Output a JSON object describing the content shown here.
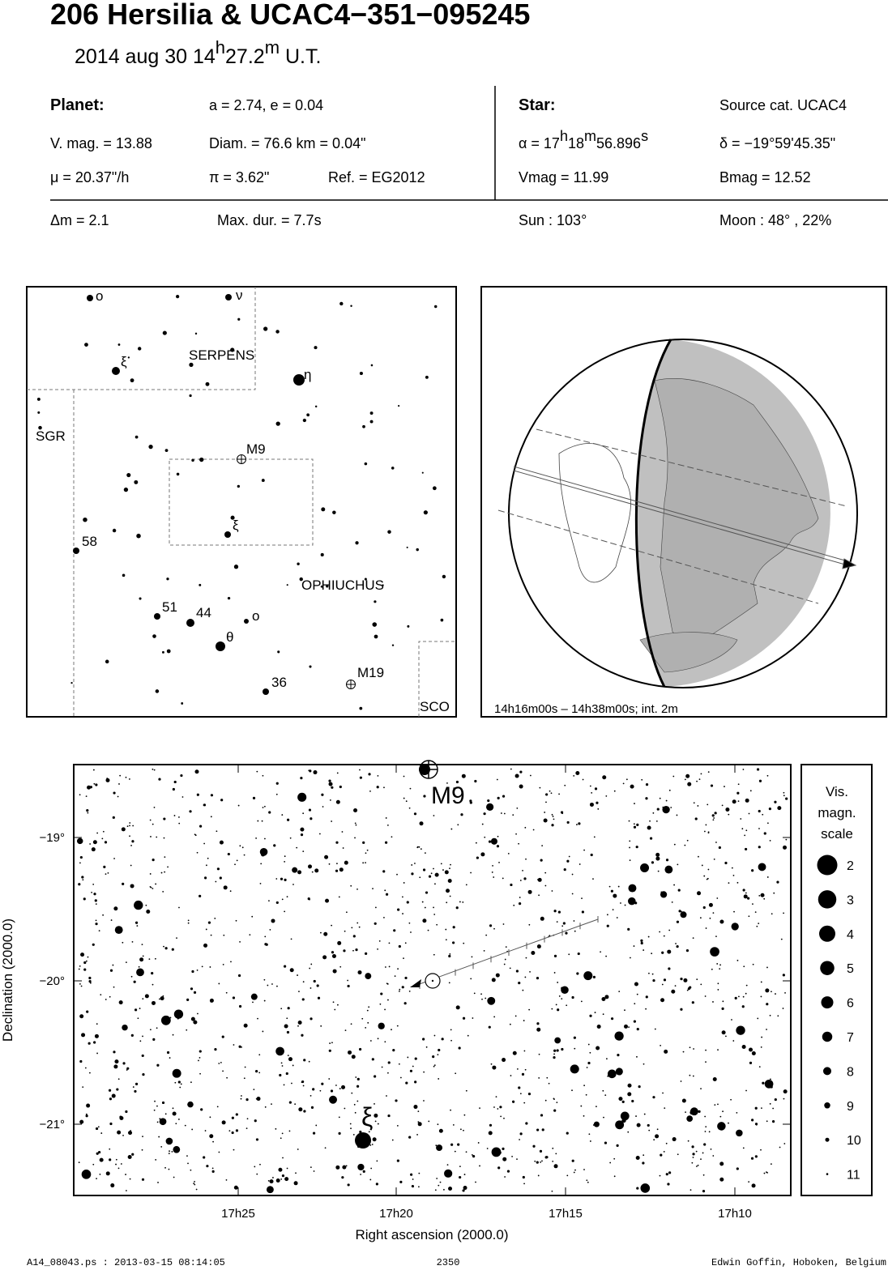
{
  "header": {
    "title": "206 Hersilia  &  UCAC4−351−095245",
    "subtitle": [
      "2014 aug 30  14",
      "h",
      "27.2",
      "m",
      " U.T."
    ]
  },
  "info": {
    "planet_label": "Planet:",
    "orbit": "a = 2.74, e = 0.04",
    "vmag": "V. mag. = 13.88",
    "diam": "Diam. = 76.6 km = 0.04\"",
    "mu": "μ =  20.37\"/h",
    "parallax": "π =  3.62\"",
    "ref": "Ref. = EG2012",
    "star_label": "Star:",
    "source": "Source cat.  UCAC4",
    "alpha": [
      "α = 17",
      "h",
      "18",
      "m",
      "56.896",
      "s"
    ],
    "delta": "δ = −19°59'45.35\"",
    "vmag_star": "Vmag = 11.99",
    "bmag": "Bmag = 12.52",
    "dm": "Δm = 2.1",
    "max_dur": "Max. dur. = 7.7s",
    "sun": "Sun : 103°",
    "moon": "Moon :  48° , 22%"
  },
  "finder": {
    "labels": [
      "o",
      "ν",
      "ξ",
      "SERPENS",
      "η",
      "SGR",
      "M9",
      "ξ",
      "58",
      "OPHIUCHUS",
      "51",
      "44",
      "o",
      "θ",
      "M19",
      "36",
      "SCO"
    ]
  },
  "globe": {
    "caption": "14h16m00s – 14h38m00s; int.  2m"
  },
  "main_chart": {
    "yticks": [
      "−19°",
      "−20°",
      "−21°"
    ],
    "xticks": [
      "17h25",
      "17h20",
      "17h15",
      "17h10"
    ],
    "xlabel": "Right ascension (2000.0)",
    "ylabel": "Declination (2000.0)",
    "labels": [
      "M9",
      "ξ"
    ]
  },
  "legend": {
    "title": [
      "Vis.",
      "magn.",
      "scale"
    ],
    "magnitudes": [
      2,
      3,
      4,
      5,
      6,
      7,
      8,
      9,
      10,
      11
    ]
  },
  "footer": {
    "left": "A14_08043.ps : 2013-03-15 08:14:05",
    "center": "2350",
    "right": "Edwin Goffin, Hoboken, Belgium"
  }
}
